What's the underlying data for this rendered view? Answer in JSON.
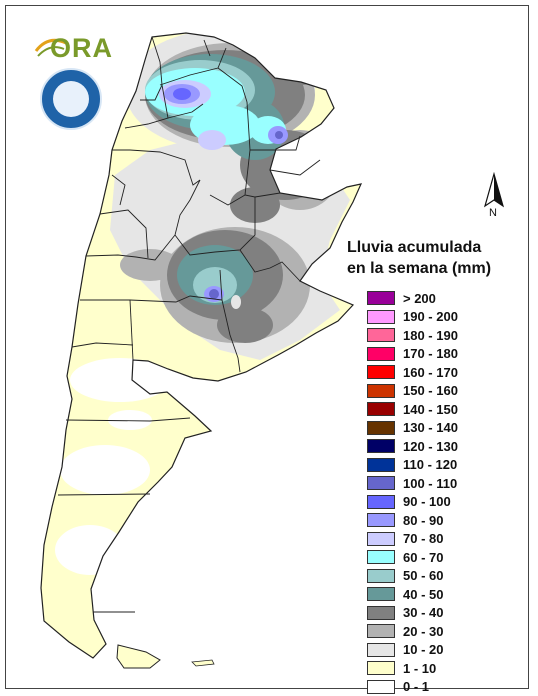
{
  "logo": {
    "ora_text": "ORA",
    "seal_alt": "Servicio Meteorológico Nacional Argentina seal"
  },
  "north": {
    "label": "N"
  },
  "legend": {
    "title_line1": "Lluvia acumulada",
    "title_line2": "en la semana (mm)",
    "items": [
      {
        "label": "> 200",
        "color": "#990099"
      },
      {
        "label": "190 - 200",
        "color": "#ff99ff"
      },
      {
        "label": "180 - 190",
        "color": "#ff6699"
      },
      {
        "label": "170 - 180",
        "color": "#ff0066"
      },
      {
        "label": "160 - 170",
        "color": "#ff0000"
      },
      {
        "label": "150 - 160",
        "color": "#cc3300"
      },
      {
        "label": "140 - 150",
        "color": "#990000"
      },
      {
        "label": "130 - 140",
        "color": "#663300"
      },
      {
        "label": "120 - 130",
        "color": "#000066"
      },
      {
        "label": "110 - 120",
        "color": "#003399"
      },
      {
        "label": "100 - 110",
        "color": "#6666cc"
      },
      {
        "label": "90 - 100",
        "color": "#6666ff"
      },
      {
        "label": "80 - 90",
        "color": "#9999ff"
      },
      {
        "label": "70 - 80",
        "color": "#ccccff"
      },
      {
        "label": "60 - 70",
        "color": "#99ffff"
      },
      {
        "label": "50 - 60",
        "color": "#99cccc"
      },
      {
        "label": "40 - 50",
        "color": "#669999"
      },
      {
        "label": "30 - 40",
        "color": "#808080"
      },
      {
        "label": "20 - 30",
        "color": "#b2b2b2"
      },
      {
        "label": "10 - 20",
        "color": "#e6e6e6"
      },
      {
        "label": "1 - 10",
        "color": "#ffffcc"
      },
      {
        "label": "0 - 1",
        "color": "#ffffff"
      }
    ]
  }
}
